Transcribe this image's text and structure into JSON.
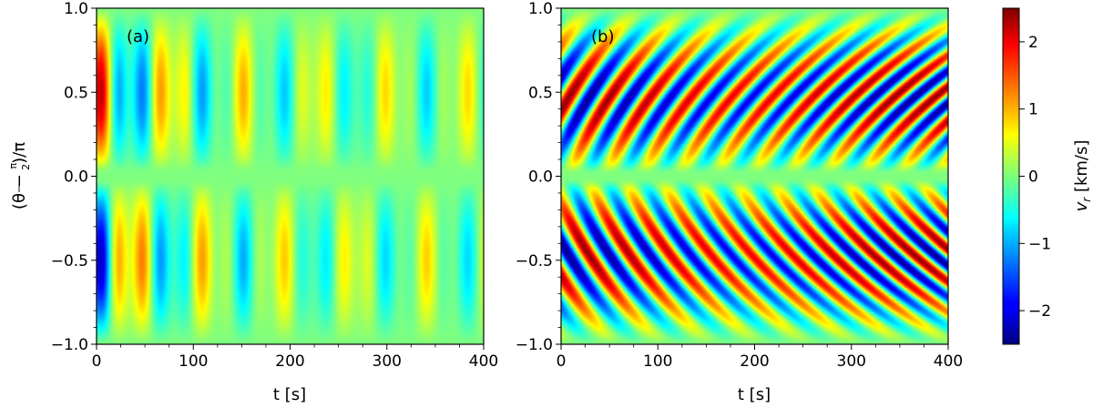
{
  "figure": {
    "y_axis_label": "(θ − π/2)/π",
    "colorbar_label": "v_r [km/s]"
  },
  "chart_data": [
    {
      "type": "heatmap",
      "panel_label": "(a)",
      "xlabel": "t [s]",
      "ylabel": "(θ − π/2)/π",
      "xlim": [
        0,
        400
      ],
      "ylim": [
        -1.0,
        1.0
      ],
      "x_ticks": [
        "0",
        "100",
        "200",
        "300",
        "400"
      ],
      "y_ticks": [
        "−1.0",
        "−0.5",
        "0.0",
        "0.5",
        "1.0"
      ],
      "pattern": {
        "description_of_field": "vertical bands, symmetric nodal gap near 0, amplitude decaying in time",
        "period_s": 76,
        "max_amplitude_km_s": 2.4,
        "band_tilt": 0
      }
    },
    {
      "type": "heatmap",
      "panel_label": "(b)",
      "xlabel": "t [s]",
      "xlim": [
        0,
        400
      ],
      "ylim": [
        -1.0,
        1.0
      ],
      "x_ticks": [
        "0",
        "100",
        "200",
        "300",
        "400"
      ],
      "y_ticks": [
        "−1.0",
        "−0.5",
        "0.0",
        "0.5",
        "1.0"
      ],
      "pattern": {
        "description_of_field": "tilted bands fanning out from the equator, amplitude sustained",
        "period_s": 38,
        "max_amplitude_km_s": 2.4,
        "band_tilt": 1
      }
    }
  ],
  "colorbar": {
    "label": "v_r [km/s]",
    "colormap": "jet",
    "range": [
      -2.5,
      2.5
    ],
    "ticks": [
      "−2",
      "−1",
      "0",
      "1",
      "2"
    ]
  }
}
